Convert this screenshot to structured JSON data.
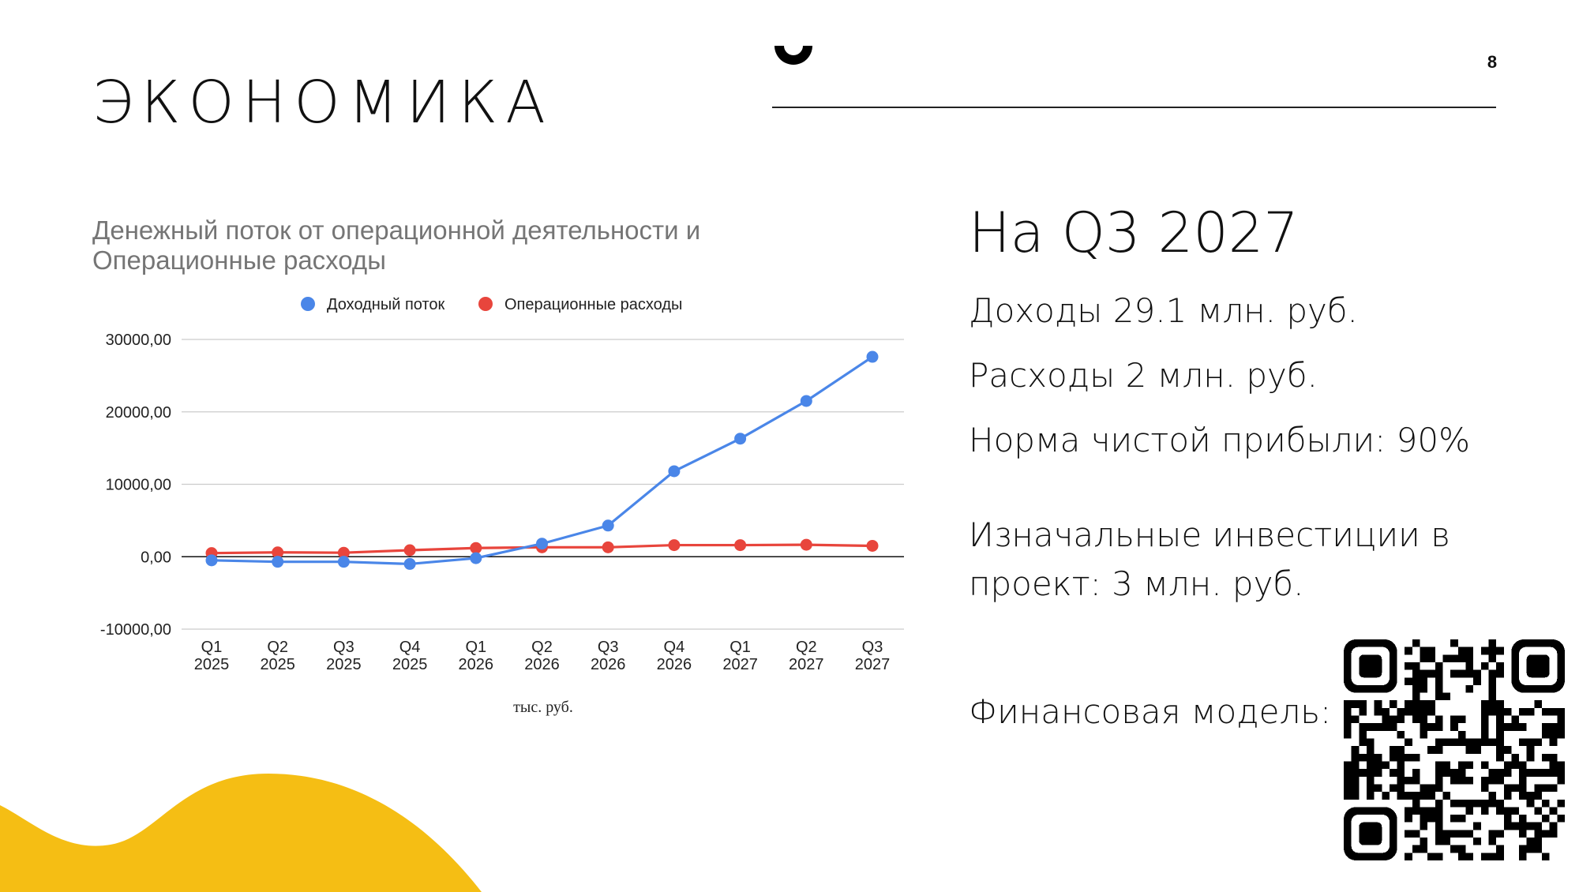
{
  "page": {
    "title": "ЭКОНОМИКА",
    "page_number": "8"
  },
  "chart_title": {
    "line1": "Денежный поток от операционной деятельности и",
    "line2": "Операционные расходы"
  },
  "chart_data": {
    "type": "line",
    "title": "Денежный поток от операционной деятельности и Операционные расходы",
    "xlabel": "тыс. руб.",
    "ylabel": "",
    "categories": [
      [
        "Q1",
        "2025"
      ],
      [
        "Q2",
        "2025"
      ],
      [
        "Q3",
        "2025"
      ],
      [
        "Q4",
        "2025"
      ],
      [
        "Q1",
        "2026"
      ],
      [
        "Q2",
        "2026"
      ],
      [
        "Q3",
        "2026"
      ],
      [
        "Q4",
        "2026"
      ],
      [
        "Q1",
        "2027"
      ],
      [
        "Q2",
        "2027"
      ],
      [
        "Q3",
        "2027"
      ]
    ],
    "ylim": [
      -10000,
      30000
    ],
    "yticks": [
      30000,
      20000,
      10000,
      0,
      -10000
    ],
    "ytick_labels": [
      "30000,00",
      "20000,00",
      "10000,00",
      "0,00",
      "-10000,00"
    ],
    "grid": true,
    "legend_position": "top",
    "series": [
      {
        "name": "Доходный поток",
        "color": "#4a86e8",
        "values": [
          -500,
          -700,
          -700,
          -1000,
          -200,
          1800,
          4300,
          11800,
          16300,
          21500,
          27600
        ]
      },
      {
        "name": "Операционные расходы",
        "color": "#e8453c",
        "values": [
          500,
          600,
          550,
          900,
          1200,
          1300,
          1300,
          1600,
          1600,
          1650,
          1500
        ]
      }
    ]
  },
  "summary": {
    "headline": "На Q3 2027",
    "income": "Доходы 29.1 млн. руб.",
    "expenses": "Расходы 2 млн. руб.",
    "margin": "Норма чистой прибыли: 90%",
    "investment_line1": "Изначальные инвестиции в",
    "investment_line2": "проект: 3 млн. руб.",
    "financial_model": "Финансовая модель:"
  },
  "colors": {
    "accent_yellow": "#f5be14",
    "axis_text": "#222222",
    "grid": "#cccccc"
  }
}
